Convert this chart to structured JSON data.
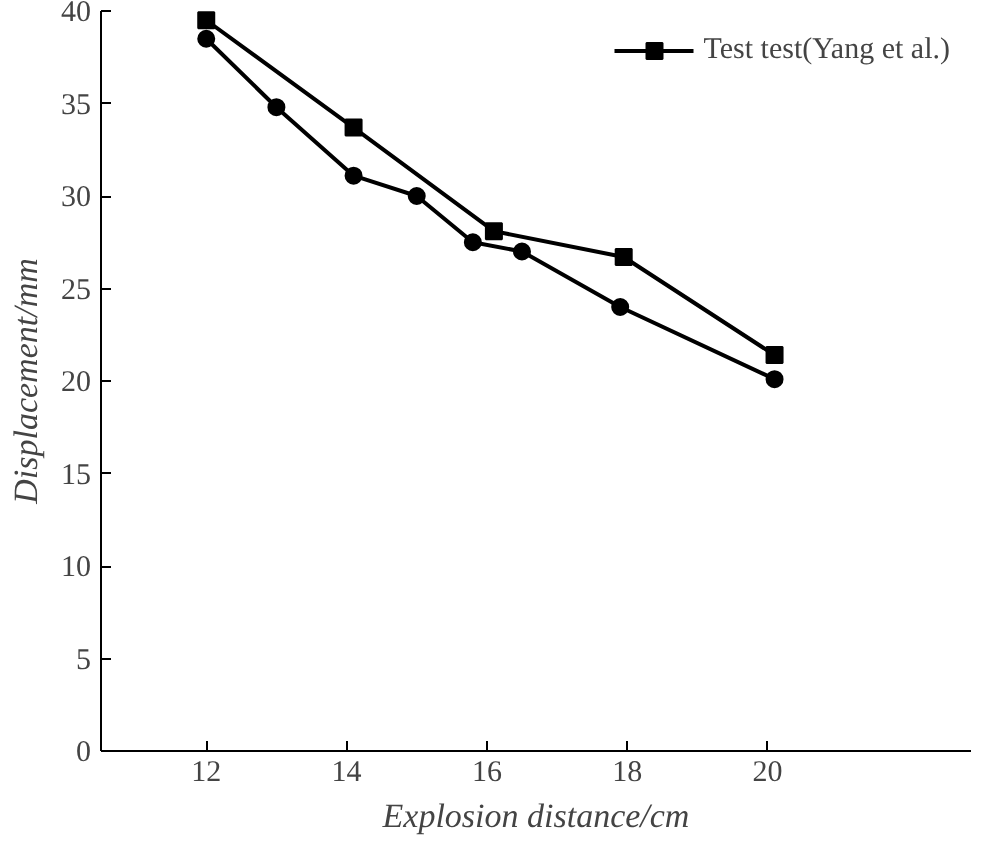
{
  "chart_data": {
    "type": "line",
    "xlabel": "Explosion distance/cm",
    "ylabel": "Displacement/mm",
    "xlim": [
      10.5,
      22.9
    ],
    "ylim": [
      0,
      40
    ],
    "xticks": [
      12,
      14,
      16,
      18,
      20
    ],
    "yticks": [
      0,
      5,
      10,
      15,
      20,
      25,
      30,
      35,
      40
    ],
    "grid": false,
    "legend": "top right",
    "line_style": "solid",
    "series": [
      {
        "name": "Test test(Yang et al.)",
        "color": "#000000",
        "marker": "square",
        "x": [
          12,
          14.1,
          16.1,
          17.95,
          20.1
        ],
        "values": [
          39.5,
          33.7,
          28.1,
          26.7,
          21.4
        ]
      },
      {
        "color": "#000000",
        "marker": "circle",
        "x": [
          12,
          13,
          14.1,
          15,
          15.8,
          16.5,
          17.9,
          20.1
        ],
        "values": [
          38.5,
          34.8,
          31.1,
          30.0,
          27.5,
          27.0,
          24.0,
          20.1
        ]
      }
    ]
  }
}
